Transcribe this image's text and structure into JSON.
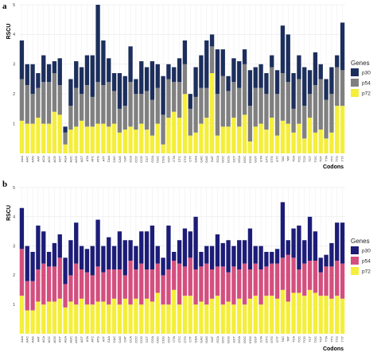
{
  "chart_data": [
    {
      "panel": "a",
      "type": "bar",
      "stacked": true,
      "ylabel": "RSCU",
      "xlabel": "Codons",
      "ylim": [
        0,
        5
      ],
      "yticks": [
        1,
        2,
        3,
        4,
        5
      ],
      "grid": true,
      "legend": {
        "title": "Genes",
        "position": "right"
      },
      "categories": [
        "AAA",
        "AAC",
        "AAG",
        "AAT",
        "ACA",
        "ACC",
        "ACG",
        "ACT",
        "AGA",
        "AGC",
        "AGG",
        "AGT",
        "ATA",
        "ATC",
        "ATG",
        "ATT",
        "CAA",
        "CAC",
        "CAG",
        "CAT",
        "CCA",
        "CCC",
        "CCG",
        "CCT",
        "CGA",
        "CGC",
        "CGG",
        "CGT",
        "CTA",
        "CTC",
        "CTG",
        "CTT",
        "GAA",
        "GAC",
        "GAG",
        "GAT",
        "GCA",
        "GCC",
        "GCG",
        "GCT",
        "GGA",
        "GGC",
        "GGG",
        "GGT",
        "GTA",
        "GTC",
        "GTG",
        "GTT",
        "TAC",
        "TAT",
        "TCA",
        "TCC",
        "TCG",
        "TCT",
        "TGC",
        "TGT",
        "TTA",
        "TTC",
        "TTG",
        "TTT"
      ],
      "series": [
        {
          "name": "p72",
          "color": "#f5ee3a",
          "values": [
            1.1,
            1.0,
            1.0,
            1.2,
            1.0,
            1.0,
            1.4,
            1.3,
            0.3,
            0.8,
            0.9,
            1.1,
            0.9,
            0.9,
            1.0,
            1.0,
            0.9,
            1.0,
            0.7,
            0.8,
            0.9,
            0.8,
            1.0,
            0.8,
            0.6,
            1.0,
            0.3,
            1.2,
            1.4,
            1.2,
            2.0,
            0.6,
            0.7,
            1.0,
            1.2,
            2.7,
            0.6,
            0.9,
            0.9,
            1.2,
            0.9,
            1.3,
            0.4,
            0.9,
            1.0,
            0.8,
            1.2,
            0.6,
            1.1,
            1.0,
            0.7,
            1.0,
            0.5,
            1.2,
            0.7,
            0.8,
            0.5,
            0.7,
            1.6,
            1.6
          ]
        },
        {
          "name": "p54",
          "color": "#808080",
          "values": [
            1.4,
            1.3,
            1.0,
            1.0,
            1.4,
            1.4,
            1.3,
            1.0,
            0.4,
            0.8,
            1.3,
            0.9,
            1.4,
            1.0,
            1.4,
            1.3,
            1.5,
            1.1,
            0.8,
            0.8,
            1.5,
            1.2,
            1.0,
            1.3,
            1.2,
            1.2,
            1.0,
            1.3,
            1.0,
            1.2,
            1.0,
            0.9,
            1.2,
            1.2,
            1.0,
            0.9,
            1.4,
            1.7,
            1.2,
            1.2,
            1.3,
            1.7,
            1.2,
            1.3,
            1.2,
            1.2,
            1.7,
            1.4,
            1.6,
            1.4,
            0.8,
            1.5,
            1.1,
            0.8,
            1.6,
            1.7,
            1.3,
            1.3,
            1.3,
            1.2
          ]
        },
        {
          "name": "p30",
          "color": "#1c2e5c",
          "values": [
            1.3,
            0.7,
            1.0,
            0.5,
            0.9,
            0.6,
            0.4,
            0.9,
            0.2,
            0.9,
            0.9,
            0.9,
            1.0,
            1.4,
            2.6,
            1.5,
            0.8,
            0.6,
            1.2,
            1.0,
            1.2,
            0.5,
            1.1,
            0.8,
            1.3,
            0.8,
            1.3,
            0.5,
            0.5,
            0.8,
            0.8,
            0.5,
            1.0,
            1.1,
            1.6,
            0.4,
            1.5,
            0.9,
            0.5,
            0.8,
            0.9,
            0.5,
            1.2,
            0.7,
            0.8,
            0.7,
            0.4,
            0.8,
            1.6,
            1.6,
            1.2,
            0.8,
            1.3,
            0.8,
            1.1,
            0.5,
            0.7,
            0.9,
            0.4,
            1.6
          ]
        }
      ]
    },
    {
      "panel": "b",
      "type": "bar",
      "stacked": true,
      "ylabel": "RSCU",
      "xlabel": "Codons",
      "ylim": [
        0,
        5
      ],
      "yticks": [
        1,
        2,
        3,
        4,
        5
      ],
      "grid": true,
      "legend": {
        "title": "Genes",
        "position": "right"
      },
      "categories": [
        "AAA",
        "AAC",
        "AAG",
        "AAT",
        "ACA",
        "ACC",
        "ACG",
        "ACT",
        "AGA",
        "AGC",
        "AGG",
        "AGT",
        "ATA",
        "ATC",
        "ATG",
        "ATT",
        "CAA",
        "CAC",
        "CAG",
        "CAT",
        "CCA",
        "CCC",
        "CCG",
        "CCT",
        "CGA",
        "CGC",
        "CGG",
        "CGT",
        "CTA",
        "CTC",
        "CTG",
        "CTT",
        "GAA",
        "GAC",
        "GAG",
        "GAT",
        "GCA",
        "GCC",
        "GCG",
        "GCT",
        "GGA",
        "GGC",
        "GGG",
        "GGT",
        "GTA",
        "GTC",
        "GTG",
        "GTT",
        "TAC",
        "TAT",
        "TCA",
        "TCC",
        "TCG",
        "TCT",
        "TGC",
        "TGT",
        "TTA",
        "TTC",
        "TTG",
        "TTT"
      ],
      "series": [
        {
          "name": "p72",
          "color": "#f5ee3a",
          "values": [
            1.3,
            0.8,
            0.8,
            1.1,
            1.0,
            1.1,
            1.1,
            1.2,
            0.9,
            1.1,
            1.0,
            1.2,
            1.0,
            1.0,
            1.1,
            1.1,
            1.0,
            1.2,
            1.0,
            1.2,
            1.0,
            1.2,
            1.0,
            1.2,
            1.1,
            1.4,
            1.0,
            1.0,
            1.5,
            1.0,
            1.3,
            1.3,
            1.0,
            1.1,
            1.0,
            1.2,
            1.3,
            1.0,
            1.1,
            1.0,
            1.2,
            1.0,
            1.2,
            1.3,
            1.0,
            1.3,
            1.3,
            1.2,
            1.5,
            1.1,
            1.4,
            1.4,
            1.3,
            1.5,
            1.4,
            1.3,
            1.3,
            1.2,
            1.3,
            1.2
          ]
        },
        {
          "name": "p54",
          "color": "#d44f7e",
          "values": [
            1.6,
            1.0,
            1.0,
            1.1,
            1.4,
            1.2,
            1.2,
            1.4,
            0.8,
            0.9,
            1.4,
            1.0,
            1.1,
            1.0,
            1.2,
            1.0,
            1.2,
            1.0,
            1.2,
            0.8,
            1.5,
            1.0,
            1.4,
            1.0,
            1.1,
            1.0,
            1.0,
            1.2,
            1.0,
            1.4,
            1.0,
            1.3,
            1.2,
            1.2,
            1.4,
            1.0,
            1.0,
            1.3,
            1.0,
            1.3,
            1.0,
            1.4,
            1.0,
            1.1,
            1.2,
            1.0,
            1.1,
            1.2,
            1.1,
            1.6,
            1.2,
            0.8,
            1.1,
            1.0,
            1.1,
            0.8,
            1.0,
            1.1,
            1.2,
            1.2
          ]
        },
        {
          "name": "p30",
          "color": "#1c1c78",
          "values": [
            1.4,
            1.2,
            1.0,
            1.5,
            1.1,
            0.5,
            0.8,
            0.8,
            0.9,
            1.2,
            1.4,
            0.8,
            0.8,
            1.0,
            1.6,
            0.9,
            1.1,
            0.8,
            1.3,
            1.2,
            0.7,
            0.8,
            1.1,
            1.3,
            1.5,
            0.6,
            0.6,
            1.5,
            0.3,
            0.8,
            1.3,
            0.9,
            1.8,
            0.5,
            0.6,
            0.8,
            1.1,
            0.8,
            1.1,
            0.7,
            1.0,
            0.8,
            1.4,
            0.6,
            0.8,
            0.5,
            0.4,
            0.5,
            1.9,
            0.5,
            1.0,
            1.5,
            0.8,
            1.5,
            1.0,
            0.5,
            0.4,
            0.8,
            1.3,
            1.4
          ]
        }
      ]
    }
  ]
}
